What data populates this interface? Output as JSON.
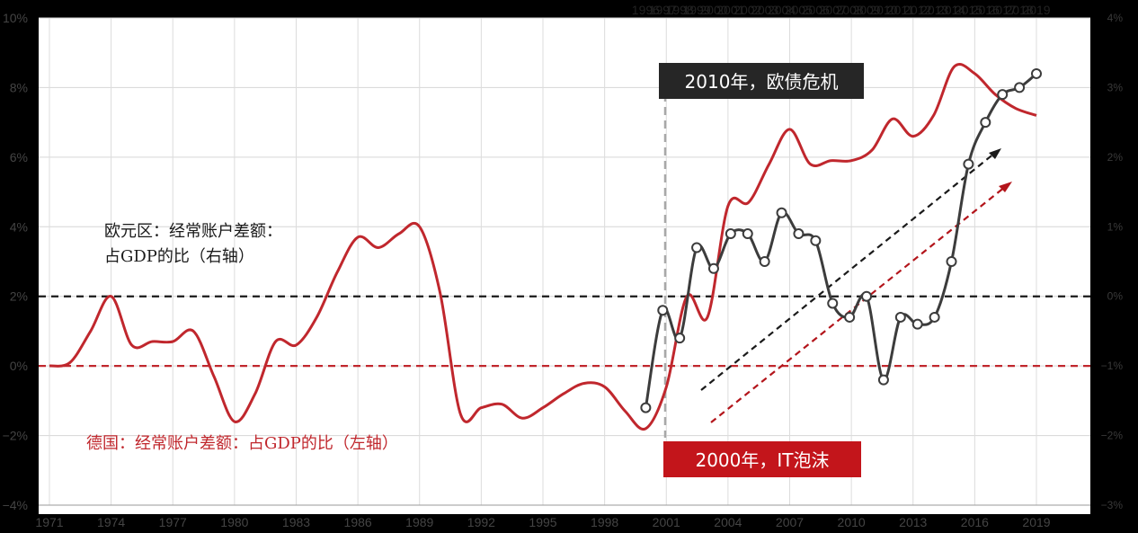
{
  "chart_data": {
    "type": "line",
    "bottom_x_ticks": [
      "1971",
      "1974",
      "1977",
      "1980",
      "1983",
      "1986",
      "1989",
      "1992",
      "1995",
      "1998",
      "2001",
      "2004",
      "2007",
      "2010",
      "2013",
      "2016",
      "2019"
    ],
    "top_x_ticks": [
      "1996",
      "1997",
      "1998",
      "1999",
      "2000",
      "2001",
      "2002",
      "2003",
      "2004",
      "2005",
      "2006",
      "2007",
      "2008",
      "2009",
      "2010",
      "2011",
      "2012",
      "2013",
      "2014",
      "2015",
      "2016",
      "2017",
      "2018",
      "2019"
    ],
    "left_axis": {
      "ticks": [
        "10%",
        "8%",
        "6%",
        "4%",
        "2%",
        "0%",
        "−2%",
        "−4%"
      ],
      "ylim": [
        -4,
        10
      ]
    },
    "right_axis": {
      "ticks": [
        "4%",
        "3%",
        "2%",
        "1%",
        "0%",
        "−1%",
        "−2%",
        "−3%"
      ],
      "ylim": [
        -3,
        4
      ]
    },
    "series": [
      {
        "name": "德国：经常账户差额：占GDP的比（左轴）",
        "axis": "left",
        "color": "#c0272d",
        "x": [
          1971,
          1972,
          1973,
          1974,
          1975,
          1976,
          1977,
          1978,
          1979,
          1980,
          1981,
          1982,
          1983,
          1984,
          1985,
          1986,
          1987,
          1988,
          1989,
          1990,
          1991,
          1992,
          1993,
          1994,
          1995,
          1996,
          1997,
          1998,
          1999,
          2000,
          2001,
          2002,
          2003,
          2004,
          2005,
          2006,
          2007,
          2008,
          2009,
          2010,
          2011,
          2012,
          2013,
          2014,
          2015,
          2016,
          2017,
          2018,
          2019
        ],
        "values": [
          0.0,
          0.1,
          1.0,
          2.0,
          0.6,
          0.7,
          0.7,
          1.0,
          -0.3,
          -1.6,
          -0.8,
          0.7,
          0.6,
          1.4,
          2.7,
          3.7,
          3.4,
          3.8,
          4.0,
          2.1,
          -1.4,
          -1.2,
          -1.1,
          -1.5,
          -1.2,
          -0.8,
          -0.5,
          -0.6,
          -1.3,
          -1.8,
          -0.6,
          2.0,
          1.4,
          4.6,
          4.7,
          5.8,
          6.8,
          5.8,
          5.9,
          5.9,
          6.2,
          7.1,
          6.6,
          7.2,
          8.6,
          8.4,
          7.8,
          7.4,
          7.2
        ]
      },
      {
        "name": "欧元区：经常账户差额：占GDP的比（右轴）",
        "axis": "right",
        "color": "#3c3c3c",
        "x": [
          1996,
          1997,
          1998,
          1999,
          2000,
          2001,
          2002,
          2003,
          2004,
          2005,
          2006,
          2007,
          2008,
          2009,
          2010,
          2011,
          2012,
          2013,
          2014,
          2015,
          2016,
          2017,
          2018,
          2019
        ],
        "values": [
          -1.6,
          -0.2,
          -0.6,
          0.7,
          0.4,
          0.9,
          0.9,
          0.5,
          1.2,
          0.9,
          0.8,
          -0.1,
          -0.3,
          0.0,
          -1.2,
          -0.3,
          -0.4,
          -0.3,
          0.5,
          1.9,
          2.5,
          2.9,
          3.0,
          3.2
        ]
      }
    ],
    "reference_lines": [
      {
        "axis": "left",
        "value": 2,
        "color": "#1a1a1a",
        "style": "dashed"
      },
      {
        "axis": "left",
        "value": 0,
        "color": "#c0272d",
        "style": "dashed"
      }
    ],
    "event_line": {
      "x": 2000,
      "label_bottom": "2000年，IT泡沫",
      "label_top": "2010年，欧债危机"
    },
    "annotations": {
      "eurozone_label_line1": "欧元区：经常账户差额：",
      "eurozone_label_line2": "占GDP的比（右轴）",
      "germany_label": "德国：经常账户差额：占GDP的比（左轴）"
    }
  }
}
